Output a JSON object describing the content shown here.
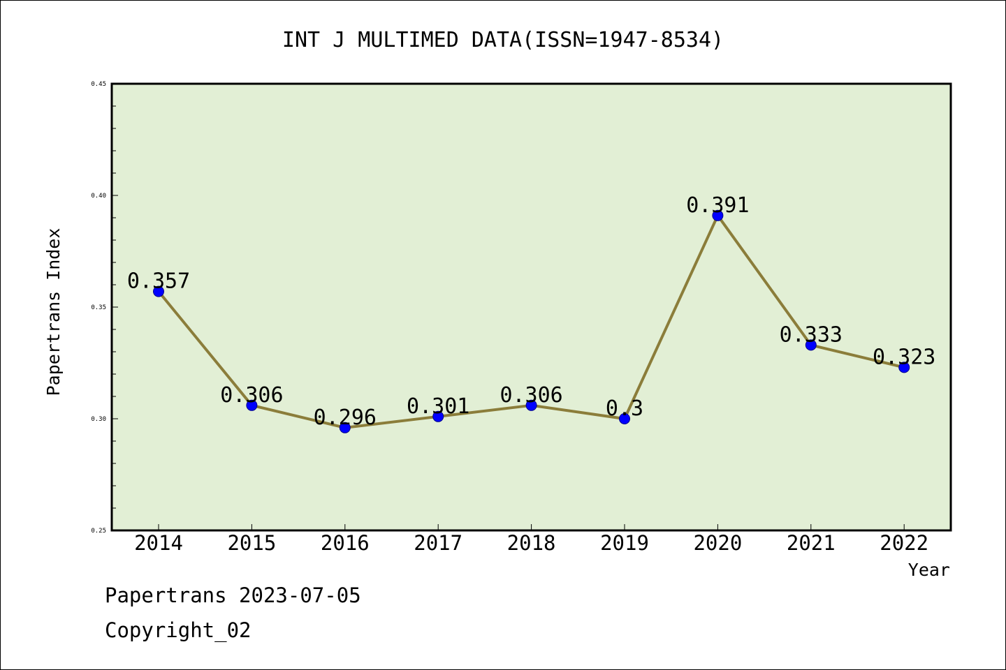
{
  "chart_data": {
    "type": "line",
    "title": "INT J MULTIMED DATA(ISSN=1947-8534)",
    "xlabel": "Year",
    "ylabel": "Papertrans Index",
    "categories": [
      "2014",
      "2015",
      "2016",
      "2017",
      "2018",
      "2019",
      "2020",
      "2021",
      "2022"
    ],
    "series": [
      {
        "values": [
          0.357,
          0.306,
          0.296,
          0.301,
          0.306,
          0.3,
          0.391,
          0.333,
          0.323
        ],
        "labels": [
          "0.357",
          "0.306",
          "0.296",
          "0.301",
          "0.306",
          "0.3",
          "0.391",
          "0.333",
          "0.323"
        ],
        "line_color": "#8b7d3a",
        "marker_color": "#0000ff"
      }
    ],
    "ylim": [
      0.25,
      0.45
    ],
    "yticks": [
      "0.25",
      "0.30",
      "0.35",
      "0.40",
      "0.45"
    ],
    "plot_background": "#e2efd5",
    "grid": false,
    "legend": "none"
  },
  "footer": {
    "line1": "Papertrans 2023-07-05",
    "line2": "Copyright_02"
  }
}
